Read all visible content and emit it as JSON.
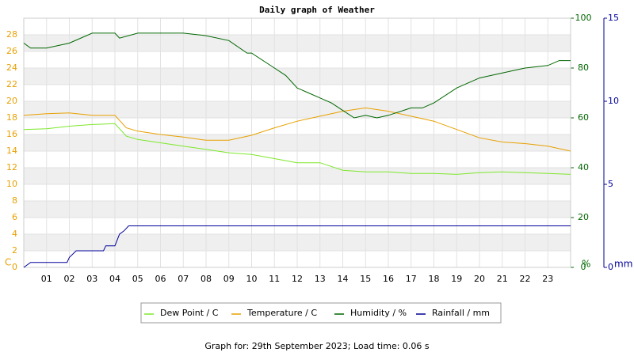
{
  "chart_data": {
    "type": "line",
    "title": "Daily graph of Weather",
    "footer": "Graph for: 29th September 2023; Load time: 0.06 s",
    "ylabel": "C",
    "y2label": "%",
    "y3label": "mm",
    "xlim": [
      0,
      24
    ],
    "xticks": [
      {
        "value": 1,
        "label": "01"
      },
      {
        "value": 2,
        "label": "02"
      },
      {
        "value": 3,
        "label": "03"
      },
      {
        "value": 4,
        "label": "04"
      },
      {
        "value": 5,
        "label": "05"
      },
      {
        "value": 6,
        "label": "06"
      },
      {
        "value": 7,
        "label": "07"
      },
      {
        "value": 8,
        "label": "08"
      },
      {
        "value": 9,
        "label": "09"
      },
      10,
      11,
      12,
      13,
      14,
      15,
      16,
      17,
      18,
      19,
      20,
      21,
      22,
      23
    ],
    "ylim": [
      0,
      30
    ],
    "yticks": [
      0,
      2,
      4,
      6,
      8,
      10,
      12,
      14,
      16,
      18,
      20,
      22,
      24,
      26,
      28
    ],
    "ycolor": "#e8a000",
    "y2lim": [
      0,
      100
    ],
    "y2ticks": [
      0,
      20,
      40,
      60,
      80,
      100
    ],
    "y2color": "#006600",
    "y3lim": [
      0,
      15
    ],
    "y3ticks": [
      0,
      5,
      10,
      15
    ],
    "y3color": "#000099",
    "grid": true,
    "series": [
      {
        "name": "Dew Point / C",
        "color": "#7de82a",
        "axis": "y",
        "x": [
          0,
          1,
          2,
          3,
          4,
          4.5,
          5,
          6,
          7,
          8,
          9,
          10,
          11,
          12,
          13,
          14,
          15,
          16,
          17,
          18,
          19,
          20,
          21,
          22,
          23,
          24
        ],
        "values": [
          16.6,
          16.7,
          17.0,
          17.2,
          17.3,
          15.8,
          15.4,
          15.0,
          14.6,
          14.2,
          13.8,
          13.6,
          13.1,
          12.6,
          12.6,
          11.7,
          11.5,
          11.5,
          11.3,
          11.3,
          11.2,
          11.4,
          11.5,
          11.4,
          11.3,
          11.2
        ]
      },
      {
        "name": "Temperature / C",
        "color": "#e8a000",
        "axis": "y",
        "x": [
          0,
          1,
          2,
          3,
          4,
          4.5,
          5,
          6,
          7,
          8,
          9,
          10,
          11,
          12,
          13,
          14,
          15,
          16,
          17,
          18,
          19,
          20,
          21,
          22,
          23,
          24
        ],
        "values": [
          18.3,
          18.5,
          18.6,
          18.3,
          18.3,
          16.8,
          16.4,
          16.0,
          15.7,
          15.3,
          15.3,
          15.9,
          16.8,
          17.6,
          18.2,
          18.8,
          19.2,
          18.8,
          18.2,
          17.6,
          16.6,
          15.6,
          15.1,
          14.9,
          14.6,
          14.0
        ]
      },
      {
        "name": "Humidity / %",
        "color": "#006600",
        "axis": "y2",
        "x": [
          0,
          0.3,
          1,
          2,
          3,
          4,
          4.2,
          5,
          6,
          7,
          8,
          9,
          9.8,
          10,
          11,
          11.5,
          12,
          12.5,
          13,
          13.5,
          14,
          14.5,
          15,
          15.5,
          16,
          17,
          17.5,
          18,
          19,
          20,
          21,
          21.5,
          22,
          23,
          23.5,
          24
        ],
        "values": [
          90,
          88,
          88,
          90,
          94,
          94,
          92,
          94,
          94,
          94,
          93,
          91,
          86,
          86,
          80,
          77,
          72,
          70,
          68,
          66,
          63,
          60,
          61,
          60,
          61,
          64,
          64,
          66,
          72,
          76,
          78,
          79,
          80,
          81,
          83,
          83
        ]
      },
      {
        "name": "Rainfall / mm",
        "color": "#000099",
        "axis": "y3",
        "x": [
          0,
          0.3,
          1.9,
          2,
          2.3,
          3,
          3.5,
          3.6,
          4,
          4.2,
          4.4,
          4.6,
          24
        ],
        "values": [
          0,
          0.3,
          0.3,
          0.6,
          1,
          1,
          1,
          1.3,
          1.3,
          2,
          2.2,
          2.5,
          2.5
        ]
      }
    ]
  }
}
